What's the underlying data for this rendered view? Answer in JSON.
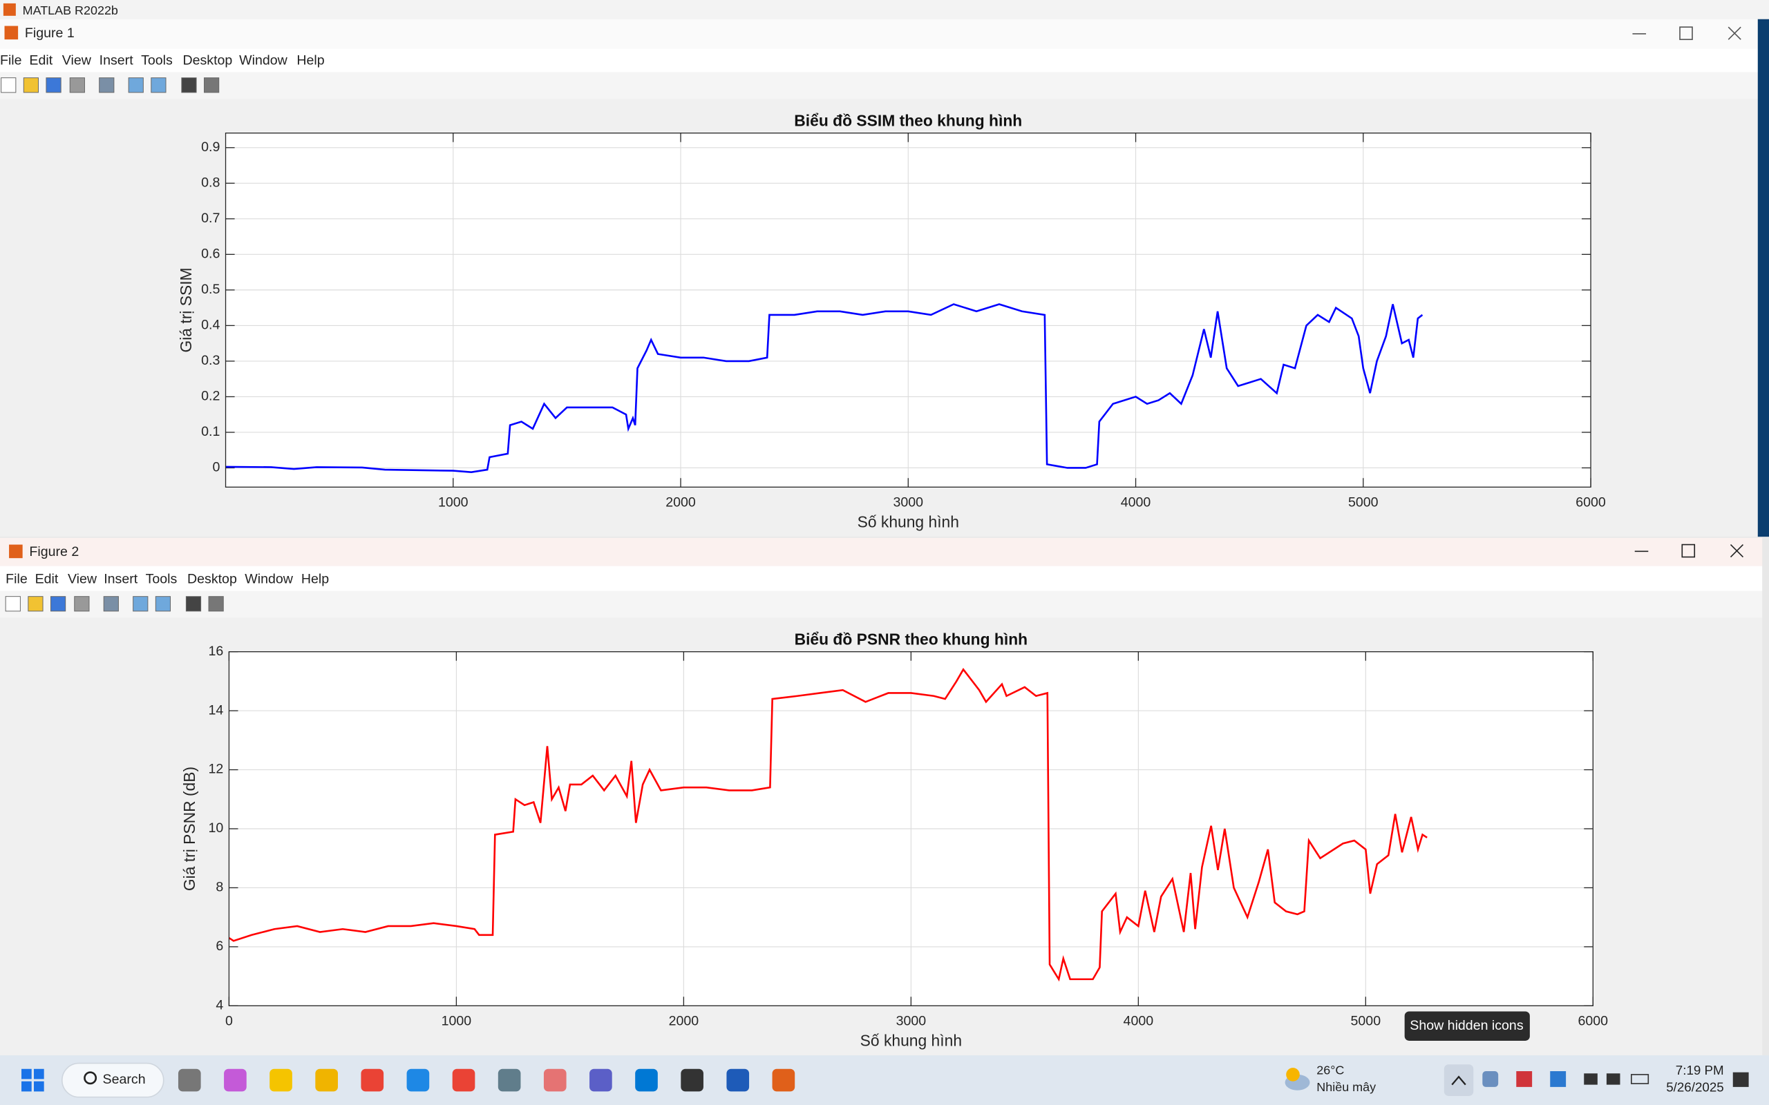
{
  "app_title": "MATLAB R2022b",
  "windows": [
    {
      "title": "Figure 1",
      "menu": [
        "File",
        "Edit",
        "View",
        "Insert",
        "Tools",
        "Desktop",
        "Window",
        "Help"
      ]
    },
    {
      "title": "Figure 2",
      "menu": [
        "File",
        "Edit",
        "View",
        "Insert",
        "Tools",
        "Desktop",
        "Window",
        "Help"
      ]
    }
  ],
  "chart_data": [
    {
      "type": "line",
      "title": "Biểu đồ SSIM theo khung hình",
      "x_label": "Số khung hình",
      "y_label": "Giá trị SSIM",
      "color": "#0000ff",
      "grid": true,
      "xlim": [
        0,
        6000
      ],
      "ylim": [
        -0.054,
        0.941
      ],
      "xticks": [
        1000,
        2000,
        3000,
        4000,
        5000,
        6000
      ],
      "yticks": [
        0,
        0.1,
        0.2,
        0.3,
        0.4,
        0.5,
        0.6,
        0.7,
        0.8,
        0.9
      ],
      "x": [
        0,
        200,
        300,
        400,
        600,
        700,
        1000,
        1080,
        1150,
        1160,
        1240,
        1250,
        1300,
        1350,
        1400,
        1450,
        1500,
        1600,
        1700,
        1760,
        1770,
        1790,
        1800,
        1810,
        1850,
        1870,
        1900,
        2000,
        2100,
        2200,
        2300,
        2380,
        2390,
        2500,
        2600,
        2700,
        2800,
        2900,
        3000,
        3100,
        3200,
        3300,
        3400,
        3500,
        3600,
        3610,
        3700,
        3780,
        3830,
        3840,
        3900,
        4000,
        4050,
        4100,
        4150,
        4200,
        4250,
        4300,
        4330,
        4360,
        4400,
        4450,
        4500,
        4550,
        4620,
        4650,
        4700,
        4750,
        4800,
        4850,
        4880,
        4950,
        4980,
        5000,
        5030,
        5060,
        5100,
        5130,
        5170,
        5200,
        5220,
        5240,
        5260
      ],
      "values": [
        0.003,
        0.002,
        -0.003,
        0.002,
        0.001,
        -0.005,
        -0.008,
        -0.012,
        -0.005,
        0.03,
        0.04,
        0.12,
        0.13,
        0.11,
        0.18,
        0.14,
        0.17,
        0.17,
        0.17,
        0.15,
        0.11,
        0.14,
        0.12,
        0.28,
        0.33,
        0.36,
        0.32,
        0.31,
        0.31,
        0.3,
        0.3,
        0.31,
        0.43,
        0.43,
        0.44,
        0.44,
        0.43,
        0.44,
        0.44,
        0.43,
        0.46,
        0.44,
        0.46,
        0.44,
        0.43,
        0.01,
        0.0,
        0.0,
        0.01,
        0.13,
        0.18,
        0.2,
        0.18,
        0.19,
        0.21,
        0.18,
        0.26,
        0.39,
        0.31,
        0.44,
        0.28,
        0.23,
        0.24,
        0.25,
        0.21,
        0.29,
        0.28,
        0.4,
        0.43,
        0.41,
        0.45,
        0.42,
        0.37,
        0.28,
        0.21,
        0.3,
        0.37,
        0.46,
        0.35,
        0.36,
        0.31,
        0.42,
        0.43
      ]
    },
    {
      "type": "line",
      "title": "Biểu đồ PSNR theo khung hình",
      "x_label": "Số khung hình",
      "y_label": "Giá trị PSNR (dB)",
      "color": "#ff0000",
      "grid": true,
      "xlim": [
        0,
        6000
      ],
      "ylim": [
        4,
        16
      ],
      "xticks": [
        0,
        1000,
        2000,
        3000,
        4000,
        5000,
        6000
      ],
      "yticks": [
        4,
        6,
        8,
        10,
        12,
        14,
        16
      ],
      "x": [
        0,
        20,
        100,
        200,
        300,
        400,
        500,
        600,
        700,
        800,
        900,
        1000,
        1080,
        1100,
        1160,
        1170,
        1250,
        1260,
        1300,
        1340,
        1370,
        1400,
        1420,
        1450,
        1480,
        1500,
        1550,
        1600,
        1650,
        1700,
        1750,
        1770,
        1790,
        1820,
        1850,
        1900,
        2000,
        2100,
        2200,
        2300,
        2380,
        2390,
        2500,
        2600,
        2700,
        2800,
        2900,
        3000,
        3100,
        3150,
        3200,
        3230,
        3300,
        3330,
        3400,
        3420,
        3500,
        3550,
        3600,
        3610,
        3650,
        3670,
        3700,
        3800,
        3830,
        3840,
        3900,
        3920,
        3950,
        4000,
        4030,
        4070,
        4100,
        4150,
        4200,
        4230,
        4250,
        4280,
        4320,
        4350,
        4380,
        4420,
        4480,
        4530,
        4570,
        4600,
        4650,
        4700,
        4730,
        4750,
        4800,
        4900,
        4950,
        5000,
        5020,
        5050,
        5100,
        5130,
        5160,
        5200,
        5230,
        5250,
        5270
      ],
      "values": [
        6.3,
        6.2,
        6.4,
        6.6,
        6.7,
        6.5,
        6.6,
        6.5,
        6.7,
        6.7,
        6.8,
        6.7,
        6.6,
        6.4,
        6.4,
        9.8,
        9.9,
        11.0,
        10.8,
        10.9,
        10.2,
        12.8,
        11.0,
        11.4,
        10.6,
        11.5,
        11.5,
        11.8,
        11.3,
        11.8,
        11.1,
        12.3,
        10.2,
        11.5,
        12.0,
        11.3,
        11.4,
        11.4,
        11.3,
        11.3,
        11.4,
        14.4,
        14.5,
        14.6,
        14.7,
        14.3,
        14.6,
        14.6,
        14.5,
        14.4,
        15.0,
        15.4,
        14.7,
        14.3,
        14.9,
        14.5,
        14.8,
        14.5,
        14.6,
        5.4,
        4.9,
        5.6,
        4.9,
        4.9,
        5.3,
        7.2,
        7.8,
        6.5,
        7.0,
        6.7,
        7.9,
        6.5,
        7.7,
        8.3,
        6.5,
        8.5,
        6.6,
        8.7,
        10.1,
        8.6,
        10.0,
        8.0,
        7.0,
        8.2,
        9.3,
        7.5,
        7.2,
        7.1,
        7.2,
        9.6,
        9.0,
        9.5,
        9.6,
        9.3,
        7.8,
        8.8,
        9.1,
        10.5,
        9.2,
        10.4,
        9.3,
        9.8,
        9.7
      ]
    }
  ],
  "tooltip": "Show hidden icons",
  "taskbar": {
    "search": "Search",
    "temperature": "26°C",
    "weather": "Nhiều mây",
    "time": "7:19 PM",
    "date": "5/26/2025"
  }
}
